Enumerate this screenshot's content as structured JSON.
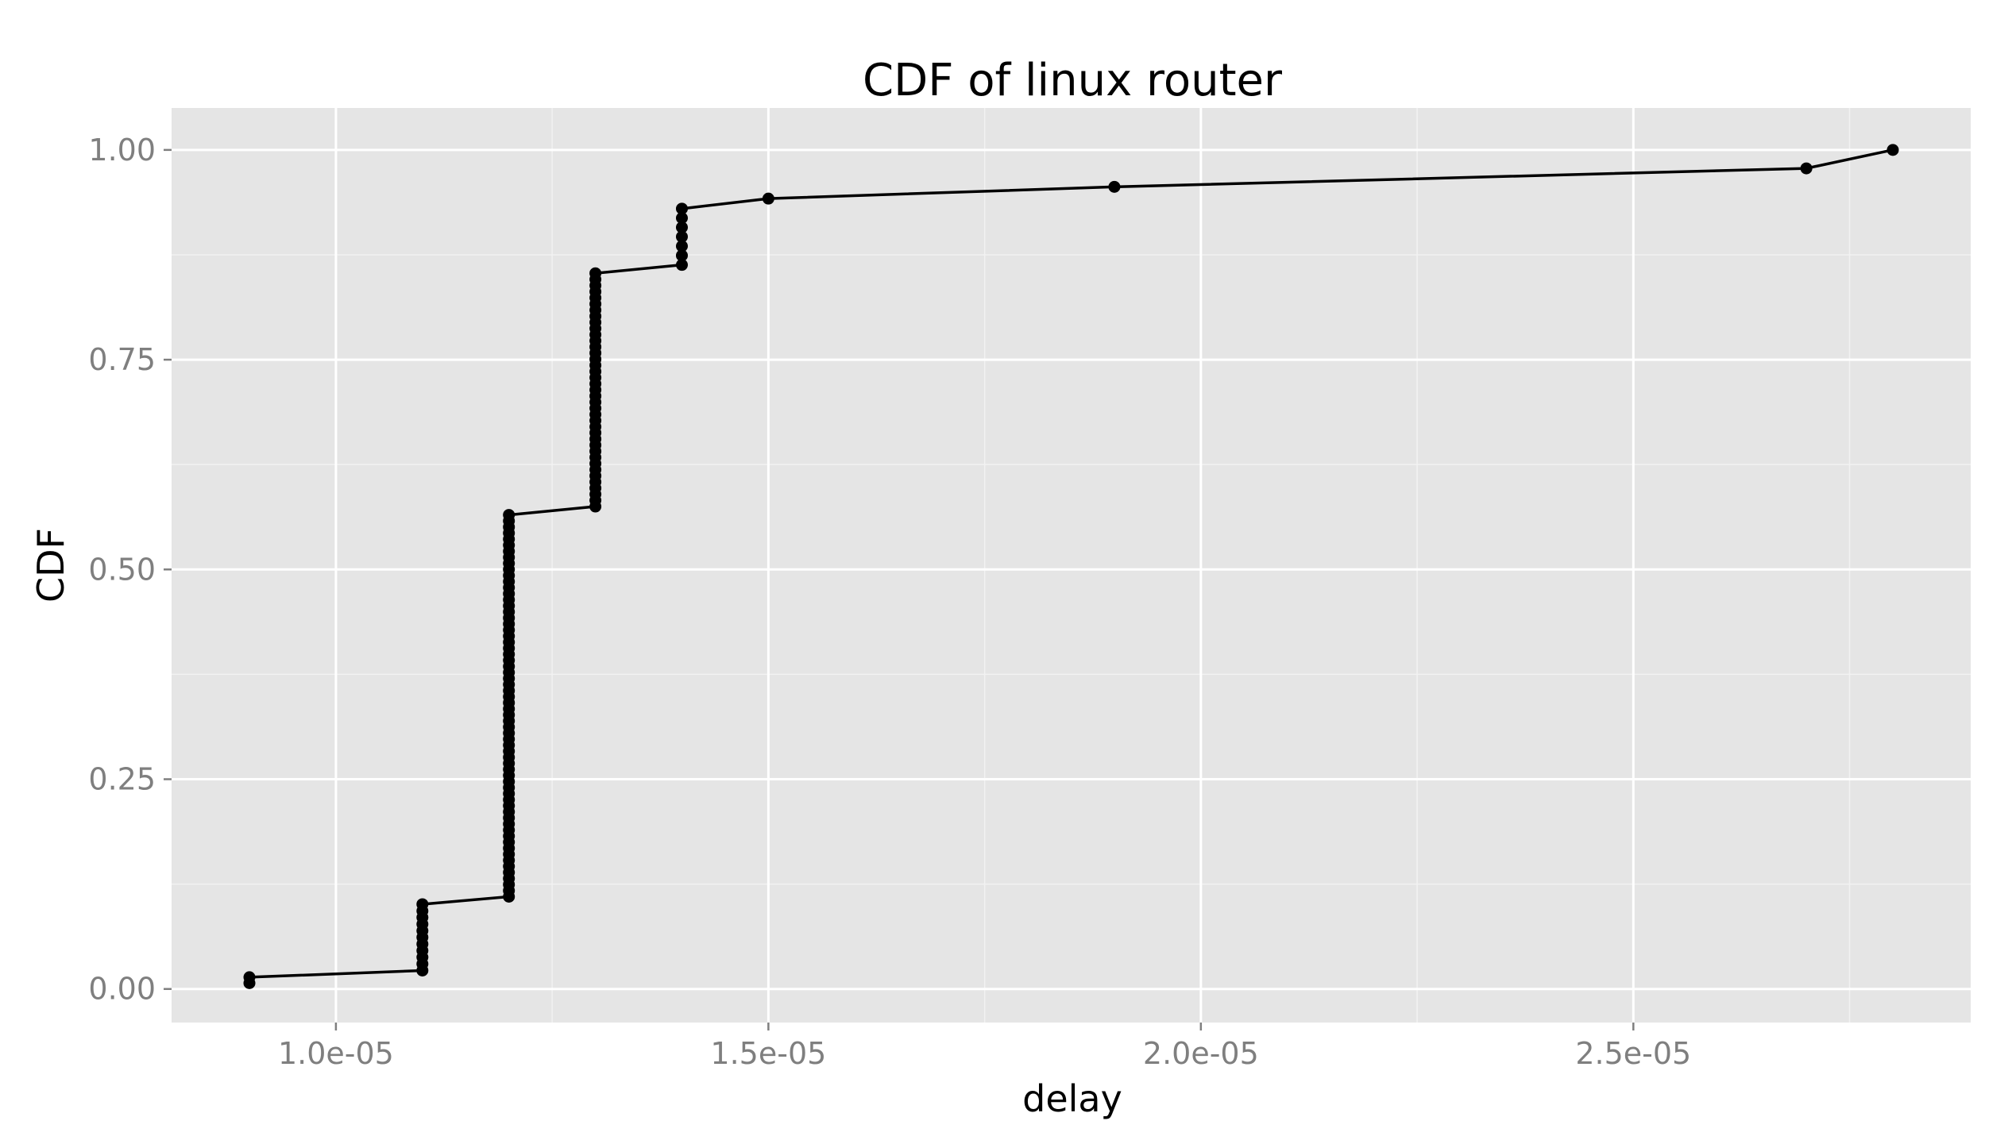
{
  "chart_data": {
    "type": "line",
    "title": "CDF of linux router",
    "xlabel": "delay",
    "ylabel": "CDF",
    "xlim": [
      8.1e-06,
      2.89e-05
    ],
    "ylim": [
      -0.04,
      1.05
    ],
    "x_ticks": [
      1e-05,
      1.5e-05,
      2e-05,
      2.5e-05
    ],
    "x_tick_labels": [
      "1.0e-05",
      "1.5e-05",
      "2.0e-05",
      "2.5e-05"
    ],
    "x_minor_ticks": [
      1.25e-05,
      1.75e-05,
      2.25e-05,
      2.75e-05
    ],
    "y_ticks": [
      0.0,
      0.25,
      0.5,
      0.75,
      1.0
    ],
    "y_tick_labels": [
      "0.00",
      "0.25",
      "0.50",
      "0.75",
      "1.00"
    ],
    "y_minor_ticks": [
      0.125,
      0.375,
      0.625,
      0.875
    ],
    "grid": true,
    "legend": "none",
    "colors": {
      "panel_background": "#e5e5e5",
      "grid_major": "#ffffff",
      "grid_minor": "#f2f2f2",
      "line": "#000000",
      "points": "#000000",
      "tick_text": "#7f7f7f",
      "tick_mark": "#7f7f7f"
    },
    "steps": [
      {
        "x": 9e-06,
        "y_from": 0.007,
        "y_to": 0.014,
        "count": 2
      },
      {
        "x": 1.1e-05,
        "y_from": 0.022,
        "y_to": 0.101,
        "count": 11
      },
      {
        "x": 1.2e-05,
        "y_from": 0.11,
        "y_to": 0.565,
        "count": 64
      },
      {
        "x": 1.3e-05,
        "y_from": 0.575,
        "y_to": 0.853,
        "count": 39
      },
      {
        "x": 1.4e-05,
        "y_from": 0.863,
        "y_to": 0.93,
        "count": 7
      },
      {
        "x": 1.5e-05,
        "y_from": 0.942,
        "y_to": 0.942,
        "count": 1
      },
      {
        "x": 1.9e-05,
        "y_from": 0.956,
        "y_to": 0.956,
        "count": 1
      },
      {
        "x": 2.7e-05,
        "y_from": 0.978,
        "y_to": 0.978,
        "count": 1
      },
      {
        "x": 2.8e-05,
        "y_from": 1.0,
        "y_to": 1.0,
        "count": 1
      }
    ]
  }
}
